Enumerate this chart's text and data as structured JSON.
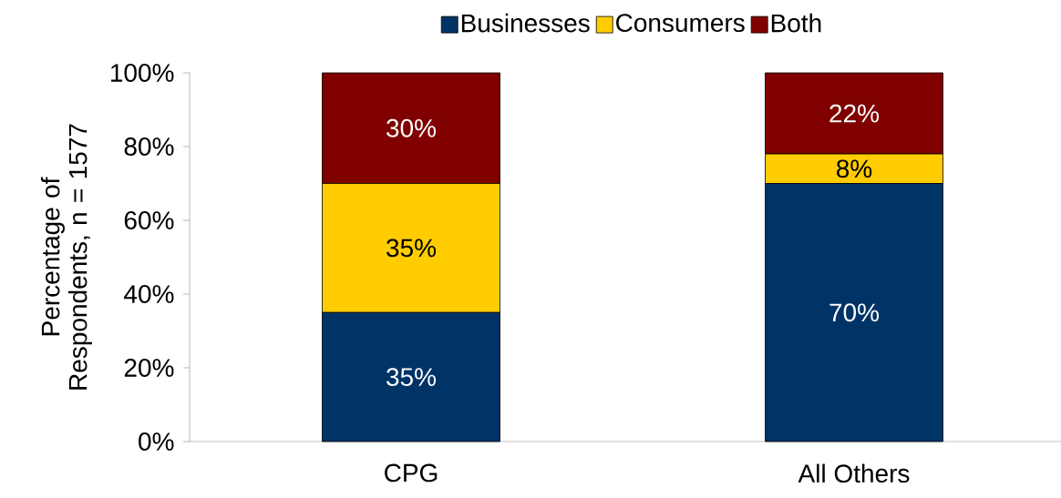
{
  "chart_data": {
    "type": "bar",
    "stacked": true,
    "ylabel": "Percentage of Respondents, n = 1577",
    "categories": [
      "CPG",
      "All Others"
    ],
    "series": [
      {
        "name": "Businesses",
        "color": "#003366",
        "values": [
          35,
          70
        ],
        "value_labels": [
          "35%",
          "70%"
        ]
      },
      {
        "name": "Consumers",
        "color": "#ffcc00",
        "values": [
          35,
          8
        ],
        "value_labels": [
          "35%",
          "8%"
        ]
      },
      {
        "name": "Both",
        "color": "#800000",
        "values": [
          30,
          22
        ],
        "value_labels": [
          "30%",
          "22%"
        ]
      }
    ],
    "ylim": [
      0,
      100
    ],
    "yticks": [
      {
        "value": 0,
        "label": "0%"
      },
      {
        "value": 20,
        "label": "20%"
      },
      {
        "value": 40,
        "label": "40%"
      },
      {
        "value": 60,
        "label": "60%"
      },
      {
        "value": 80,
        "label": "80%"
      },
      {
        "value": 100,
        "label": "100%"
      }
    ],
    "legend": "top",
    "grid": false
  }
}
